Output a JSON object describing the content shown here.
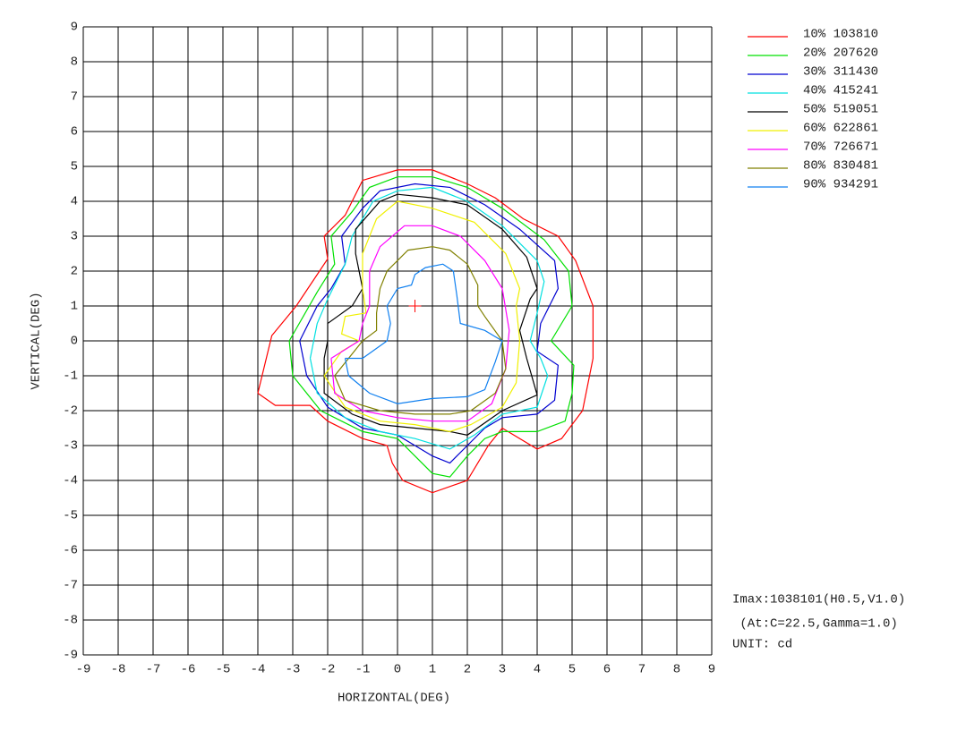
{
  "chart_data": {
    "type": "contour",
    "xlabel": "HORIZONTAL(DEG)",
    "ylabel": "VERTICAL(DEG)",
    "xlim": [
      -9,
      9
    ],
    "ylim": [
      -9,
      9
    ],
    "xticks": [
      -9,
      -8,
      -7,
      -6,
      -5,
      -4,
      -3,
      -2,
      -1,
      0,
      1,
      2,
      3,
      4,
      5,
      6,
      7,
      8,
      9
    ],
    "yticks": [
      -9,
      -8,
      -7,
      -6,
      -5,
      -4,
      -3,
      -2,
      -1,
      0,
      1,
      2,
      3,
      4,
      5,
      6,
      7,
      8,
      9
    ],
    "grid": true,
    "peak": {
      "x": 0.5,
      "y": 1,
      "color": "#ff0000"
    },
    "annotations": [
      "Imax:1038101(H0.5,V1.0)",
      " (At:C=22.5,Gamma=1.0)",
      "UNIT: cd"
    ],
    "series": [
      {
        "name": "10% 103810",
        "color": "#ff0000",
        "x": [
          -4,
          -3.5,
          -2.5,
          -2,
          -1,
          -0.3,
          -0.15,
          0.15,
          1,
          2,
          2.6,
          3,
          4,
          4.7,
          5.3,
          5.6,
          5.6,
          5.1,
          4.6,
          3.6,
          2.8,
          2,
          1,
          0,
          -1,
          -1.5,
          -2.1,
          -2,
          -2.9,
          -3.6,
          -4
        ],
        "y": [
          -1.5,
          -1.85,
          -1.85,
          -2.3,
          -2.8,
          -3,
          -3.5,
          -4,
          -4.35,
          -4,
          -3,
          -2.5,
          -3.1,
          -2.8,
          -2,
          -0.5,
          1,
          2.3,
          3,
          3.5,
          4.1,
          4.5,
          4.9,
          4.9,
          4.6,
          3.6,
          3,
          2.35,
          1,
          0.15,
          -1.5
        ]
      },
      {
        "name": "20% 207620",
        "color": "#00e000",
        "x": [
          -3.1,
          -3,
          -2.2,
          -1,
          0,
          0.5,
          1,
          1.5,
          2,
          2.5,
          3,
          4,
          4.8,
          5,
          5.05,
          4.4,
          5,
          4.9,
          4.2,
          3,
          2,
          1,
          0,
          -0.8,
          -1.3,
          -1.9,
          -1.8,
          -2.3,
          -3.1
        ],
        "y": [
          0,
          -1,
          -2,
          -2.6,
          -2.8,
          -3.3,
          -3.8,
          -3.9,
          -3.3,
          -2.8,
          -2.6,
          -2.6,
          -2.3,
          -1.5,
          -0.7,
          0,
          1,
          2,
          2.9,
          3.8,
          4.4,
          4.7,
          4.7,
          4.4,
          3.7,
          3,
          2.2,
          1.4,
          0
        ]
      },
      {
        "name": "30% 311430",
        "color": "#0000d0",
        "x": [
          -2.8,
          -2.6,
          -2,
          -1,
          0,
          0.5,
          1,
          1.5,
          2,
          2.5,
          3,
          4,
          4.5,
          4.6,
          4,
          4.1,
          4.6,
          4.5,
          3.5,
          2.5,
          1.5,
          0.5,
          -0.5,
          -1,
          -1.6,
          -1.5,
          -1.9,
          -2.3,
          -2.8
        ],
        "y": [
          0,
          -1,
          -1.9,
          -2.5,
          -2.7,
          -3,
          -3.3,
          -3.5,
          -3,
          -2.5,
          -2.2,
          -2.1,
          -1.7,
          -0.7,
          -0.3,
          0.5,
          1.5,
          2.3,
          3.2,
          3.9,
          4.4,
          4.5,
          4.3,
          3.8,
          3,
          2.2,
          1.5,
          1,
          0
        ]
      },
      {
        "name": "40% 415241",
        "color": "#00e0e0",
        "x": [
          -2.5,
          -2.3,
          -1.5,
          -0.5,
          0.5,
          1.5,
          2.2,
          3,
          4,
          4.3,
          4.1,
          3.8,
          4,
          4.2,
          4,
          3,
          2,
          1,
          0,
          -0.7,
          -1.3,
          -1.5,
          -2,
          -2.3,
          -2.5
        ],
        "y": [
          -0.5,
          -1.5,
          -2.2,
          -2.6,
          -2.8,
          -3.1,
          -2.7,
          -2.1,
          -1.9,
          -1,
          -0.5,
          0,
          0.8,
          1.7,
          2.3,
          3.3,
          4,
          4.4,
          4.3,
          4,
          3,
          2.2,
          1.2,
          0.5,
          -0.5
        ]
      },
      {
        "name": "50% 519051",
        "color": "#000000",
        "x": [
          -2.1,
          -2.1,
          -1.3,
          -0.5,
          0.5,
          1.5,
          2,
          3,
          4,
          3.7,
          3.5,
          3.8,
          4,
          3.7,
          3,
          2,
          1,
          0,
          -0.5,
          -1.2,
          -1.2,
          -1,
          -1.3,
          -2,
          -2,
          -2.1
        ],
        "y": [
          -0.5,
          -1.5,
          -2.1,
          -2.4,
          -2.5,
          -2.6,
          -2.7,
          -2,
          -1.55,
          -0.5,
          0.3,
          1.2,
          1.5,
          2.4,
          3.2,
          3.9,
          4.1,
          4.2,
          4,
          3.2,
          2.5,
          1.5,
          1,
          0.5,
          0,
          -0.5
        ]
      },
      {
        "name": "60% 622861",
        "color": "#f0f000",
        "x": [
          -2.1,
          -1.5,
          -0.5,
          0.5,
          1.5,
          2.1,
          3,
          3.4,
          3.5,
          3.4,
          3.5,
          3.1,
          2.2,
          1,
          0,
          -0.6,
          -1,
          -1,
          -0.9,
          -1.5,
          -1.6,
          -1.1,
          -1.6,
          -2.1
        ],
        "y": [
          -1,
          -1.9,
          -2.3,
          -2.4,
          -2.6,
          -2.4,
          -1.9,
          -1.2,
          0,
          1,
          1.5,
          2.5,
          3.4,
          3.8,
          4,
          3.5,
          2.5,
          1.5,
          0.8,
          0.7,
          0.2,
          0,
          -0.3,
          -1
        ]
      },
      {
        "name": "70% 726671",
        "color": "#ff00ff",
        "x": [
          -1.9,
          -1.8,
          -1,
          0,
          1,
          2,
          2.7,
          3.1,
          3.2,
          3,
          2.5,
          1.8,
          1,
          0.2,
          -0.5,
          -0.8,
          -0.8,
          -1,
          -1.1,
          -1.9
        ],
        "y": [
          -0.5,
          -1.5,
          -2,
          -2.2,
          -2.3,
          -2.3,
          -1.8,
          -0.8,
          0.3,
          1.5,
          2.3,
          3,
          3.3,
          3.3,
          2.7,
          2,
          1,
          0.5,
          0,
          -0.5
        ]
      },
      {
        "name": "80% 830481",
        "color": "#808000",
        "x": [
          -1.8,
          -1.5,
          -0.5,
          0.5,
          1.5,
          2.1,
          2.8,
          3.1,
          3,
          2.5,
          2.3,
          2.3,
          2,
          1.5,
          1,
          0.3,
          -0.3,
          -0.5,
          -0.6,
          -0.6,
          -1,
          -1.8
        ],
        "y": [
          -1,
          -1.7,
          -2,
          -2.1,
          -2.1,
          -2,
          -1.5,
          -0.8,
          0,
          0.7,
          1,
          1.6,
          2.2,
          2.6,
          2.7,
          2.6,
          2,
          1.5,
          0.8,
          0.3,
          0,
          -1
        ]
      },
      {
        "name": "90% 934291",
        "color": "#1080f0",
        "x": [
          -1.5,
          -1.4,
          -0.8,
          0,
          1,
          2,
          2.5,
          2.8,
          3,
          2.5,
          1.8,
          1.7,
          1.6,
          1.3,
          0.8,
          0.5,
          0.4,
          0,
          -0.3,
          -0.2,
          -0.3,
          -1,
          -1.5
        ],
        "y": [
          -0.5,
          -1,
          -1.5,
          -1.8,
          -1.65,
          -1.6,
          -1.4,
          -0.6,
          0,
          0.3,
          0.5,
          1.3,
          2,
          2.2,
          2.1,
          1.9,
          1.6,
          1.5,
          1,
          0.5,
          0,
          -0.5,
          -0.5
        ]
      }
    ]
  }
}
